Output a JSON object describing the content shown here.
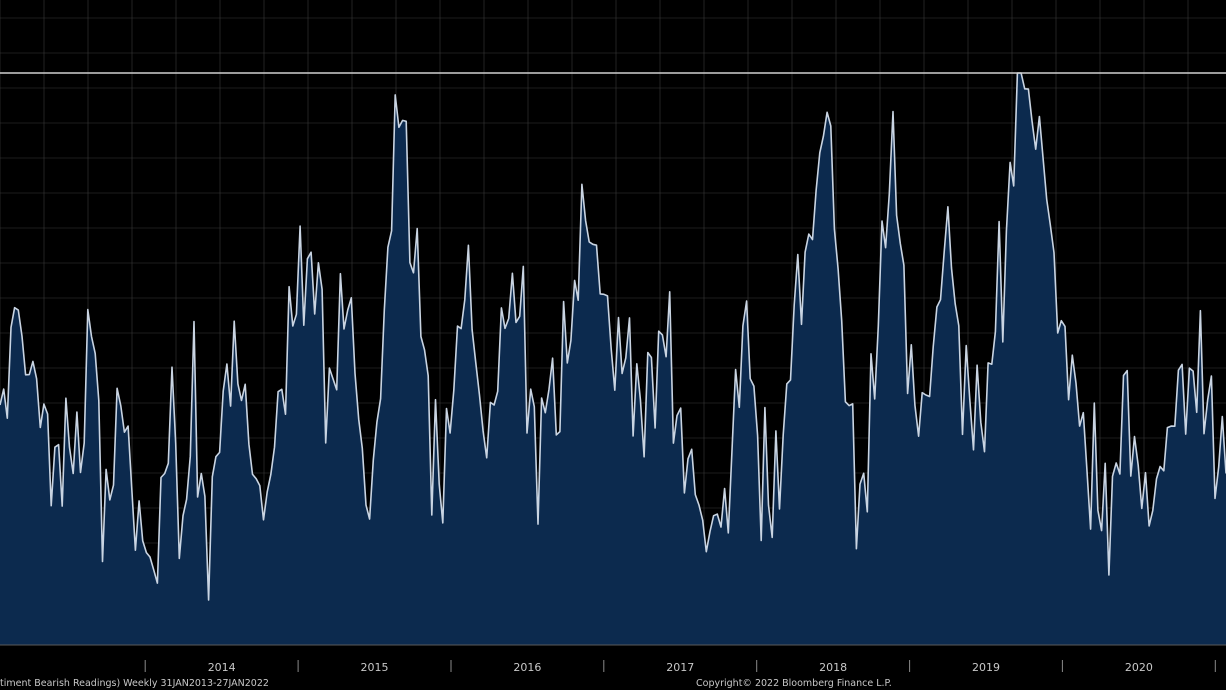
{
  "chart_data": {
    "type": "area",
    "title": "",
    "xlabel": "",
    "ylabel": "",
    "grid": true,
    "colors": {
      "background": "#000000",
      "fill": "#0c2a4e",
      "line": "#c9d4e2",
      "grid": "#3a3a3a",
      "reference_line": "#d0d0d0"
    },
    "x_ticks": [
      "2014",
      "2015",
      "2016",
      "2017",
      "2018",
      "2019",
      "2020"
    ],
    "x_range": [
      2013.05,
      2021.07
    ],
    "y_relative_range": [
      0,
      1
    ],
    "reference_level": 1.0,
    "series": [
      {
        "values": [
          0.37,
          0.38,
          0.41,
          0.46,
          0.55,
          0.55,
          0.48,
          0.42,
          0.46,
          0.44,
          0.42,
          0.36,
          0.36,
          0.3,
          0.29,
          0.29,
          0.27,
          0.27,
          0.28,
          0.3,
          0.24,
          0.27,
          0.3,
          0.35,
          0.38,
          0.5,
          0.46,
          0.3,
          0.2,
          0.17,
          0.19,
          0.28,
          0.34,
          0.37,
          0.39,
          0.33,
          0.22,
          0.12,
          0.16,
          0.1,
          0.09,
          0.07,
          0.03,
          0.1,
          0.18,
          0.24,
          0.32,
          0.37,
          0.3,
          0.2,
          0.16,
          0.23,
          0.32,
          0.39,
          0.34,
          0.24,
          0.13,
          0.11,
          0.17,
          0.21,
          0.28,
          0.34,
          0.45,
          0.44,
          0.43,
          0.41,
          0.4,
          0.37,
          0.31,
          0.27,
          0.23,
          0.21,
          0.19,
          0.17,
          0.21,
          0.29,
          0.35,
          0.4,
          0.44,
          0.45,
          0.52,
          0.58,
          0.6,
          0.63,
          0.65,
          0.66,
          0.63,
          0.59,
          0.53,
          0.46,
          0.44,
          0.42,
          0.47,
          0.52,
          0.56,
          0.55,
          0.53,
          0.46,
          0.36,
          0.24,
          0.18,
          0.17,
          0.24,
          0.33,
          0.45,
          0.55,
          0.67,
          0.76,
          0.86,
          0.95,
          0.91,
          0.83,
          0.72,
          0.63,
          0.56,
          0.5,
          0.44,
          0.37,
          0.3,
          0.25,
          0.22,
          0.21,
          0.27,
          0.36,
          0.46,
          0.52,
          0.55,
          0.58,
          0.62,
          0.56,
          0.45,
          0.37,
          0.33,
          0.3,
          0.32,
          0.37,
          0.43,
          0.49,
          0.55,
          0.6,
          0.62,
          0.58,
          0.55,
          0.52,
          0.48,
          0.4,
          0.32,
          0.26,
          0.28,
          0.34,
          0.4,
          0.38,
          0.35,
          0.38,
          0.43,
          0.45,
          0.5,
          0.55,
          0.63,
          0.78,
          0.72,
          0.7,
          0.68,
          0.64,
          0.6,
          0.58,
          0.54,
          0.5,
          0.44,
          0.42,
          0.43,
          0.47,
          0.45,
          0.43,
          0.4,
          0.38,
          0.36,
          0.39,
          0.44,
          0.48,
          0.51,
          0.53,
          0.52,
          0.46,
          0.4,
          0.35,
          0.31,
          0.27,
          0.25,
          0.23,
          0.2,
          0.17,
          0.13,
          0.12,
          0.14,
          0.16,
          0.18,
          0.16,
          0.14,
          0.2,
          0.28,
          0.38,
          0.45,
          0.49,
          0.47,
          0.42,
          0.35,
          0.29,
          0.24,
          0.2,
          0.18,
          0.17,
          0.21,
          0.26,
          0.34,
          0.41,
          0.48,
          0.54,
          0.6,
          0.62,
          0.66,
          0.68,
          0.72,
          0.76,
          0.82,
          0.88,
          0.93,
          0.86,
          0.75,
          0.64,
          0.53,
          0.43,
          0.35,
          0.3,
          0.25,
          0.22,
          0.22,
          0.27,
          0.34,
          0.42,
          0.52,
          0.63,
          0.74,
          0.8,
          0.78,
          0.73,
          0.66,
          0.58,
          0.49,
          0.42,
          0.37,
          0.35,
          0.36,
          0.38,
          0.43,
          0.48,
          0.54,
          0.6,
          0.66,
          0.68,
          0.63,
          0.55,
          0.47,
          0.42,
          0.4,
          0.38,
          0.36,
          0.35,
          0.36,
          0.4,
          0.45,
          0.5,
          0.54,
          0.59,
          0.64,
          0.7,
          0.78,
          0.88,
          0.97,
          1.0,
          0.97,
          0.93,
          0.91,
          0.9,
          0.87,
          0.84,
          0.78,
          0.7,
          0.63,
          0.57,
          0.53,
          0.49,
          0.45,
          0.41,
          0.37,
          0.33,
          0.29,
          0.26,
          0.23,
          0.2,
          0.17,
          0.16,
          0.15,
          0.17,
          0.21,
          0.26,
          0.32,
          0.37,
          0.4,
          0.36,
          0.31,
          0.26,
          0.22,
          0.18,
          0.16,
          0.17,
          0.21,
          0.25,
          0.28,
          0.3,
          0.33,
          0.37,
          0.4,
          0.42,
          0.43,
          0.44,
          0.44,
          0.43,
          0.42,
          0.4,
          0.38,
          0.34,
          0.29,
          0.24,
          0.22,
          0.24
        ],
        "jitter_amplitude": [
          0.0,
          0.1,
          0.13,
          0.16,
          0.2
        ]
      }
    ]
  },
  "footer": {
    "left_text": "timent Bearish Readings)  Weekly 31JAN2013-27JAN2022",
    "right_text": "Copyright© 2022 Bloomberg Finance L.P."
  }
}
